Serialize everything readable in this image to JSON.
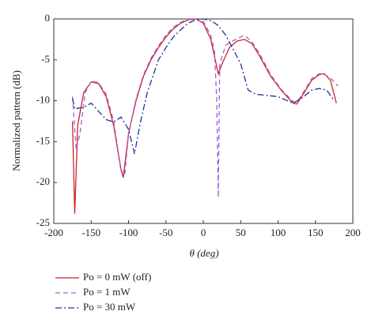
{
  "chart_data": {
    "type": "line",
    "x_label": "θ (deg)",
    "y_label": "Normalized pattern (dB)",
    "xlim": [
      -200,
      200
    ],
    "xticks": [
      -200,
      -150,
      -100,
      -50,
      0,
      50,
      100,
      150,
      200
    ],
    "ylim": [
      -25,
      0
    ],
    "yticks": [
      0,
      -5,
      -10,
      -15,
      -20,
      -25
    ],
    "series": [
      {
        "name": "Po = 0 mW (off)",
        "color": "#d0202a",
        "dash": "none",
        "x": [
          -175,
          -172,
          -168,
          -160,
          -150,
          -140,
          -130,
          -120,
          -110,
          -107,
          -100,
          -90,
          -80,
          -70,
          -60,
          -50,
          -40,
          -30,
          -20,
          -10,
          0,
          10,
          20,
          25,
          35,
          45,
          55,
          65,
          75,
          90,
          105,
          120,
          125,
          135,
          145,
          155,
          162,
          170,
          178
        ],
        "values": [
          -12.5,
          -23.8,
          -13,
          -9,
          -7.7,
          -7.9,
          -9.5,
          -13,
          -18.5,
          -19.4,
          -14,
          -10,
          -7,
          -5,
          -3.5,
          -2.2,
          -1.2,
          -0.5,
          -0.1,
          0,
          -0.5,
          -2.5,
          -6.7,
          -5.5,
          -3.5,
          -2.7,
          -2.5,
          -3,
          -4.5,
          -7,
          -8.8,
          -10.3,
          -10.4,
          -9,
          -7.5,
          -6.8,
          -6.7,
          -7.5,
          -10.3
        ]
      },
      {
        "name": "Po = 1 mW",
        "color": "#a060d0",
        "dash": "6 4",
        "x": [
          -175,
          -170,
          -165,
          -158,
          -150,
          -140,
          -130,
          -120,
          -110,
          -105,
          -100,
          -90,
          -80,
          -70,
          -60,
          -50,
          -40,
          -30,
          -20,
          -10,
          0,
          10,
          15,
          18,
          20,
          22,
          30,
          45,
          55,
          65,
          75,
          90,
          105,
          120,
          125,
          135,
          145,
          155,
          162,
          170,
          180
        ],
        "values": [
          -9.5,
          -16,
          -14,
          -9,
          -7.6,
          -7.8,
          -9.2,
          -12.5,
          -18.5,
          -19,
          -14,
          -9.8,
          -6.8,
          -4.8,
          -3.3,
          -2,
          -1,
          -0.4,
          0,
          0,
          -0.3,
          -2,
          -4,
          -10,
          -21.8,
          -5.5,
          -3.2,
          -2.4,
          -2,
          -2.8,
          -4.2,
          -6.8,
          -8.7,
          -10.1,
          -10.2,
          -8.8,
          -7.3,
          -6.7,
          -6.8,
          -7.2,
          -8.2
        ]
      },
      {
        "name": "Po = 30 mW",
        "color": "#2030a0",
        "dash": "8 3 2 3",
        "x": [
          -175,
          -172,
          -160,
          -150,
          -140,
          -130,
          -120,
          -110,
          -100,
          -92,
          -85,
          -75,
          -60,
          -50,
          -40,
          -30,
          -20,
          -10,
          0,
          10,
          20,
          30,
          40,
          50,
          60,
          70,
          80,
          100,
          120,
          130,
          145,
          155,
          165,
          175
        ],
        "values": [
          -9.7,
          -11,
          -10.8,
          -10.3,
          -11.3,
          -12.3,
          -12.6,
          -12,
          -13.5,
          -16.5,
          -13,
          -9,
          -5,
          -3.5,
          -2.2,
          -1.3,
          -0.5,
          -0.1,
          0,
          -0.2,
          -0.8,
          -2,
          -3.7,
          -5.5,
          -8.7,
          -9.2,
          -9.3,
          -9.5,
          -10.3,
          -9.8,
          -8.7,
          -8.5,
          -8.7,
          -10
        ]
      }
    ]
  }
}
